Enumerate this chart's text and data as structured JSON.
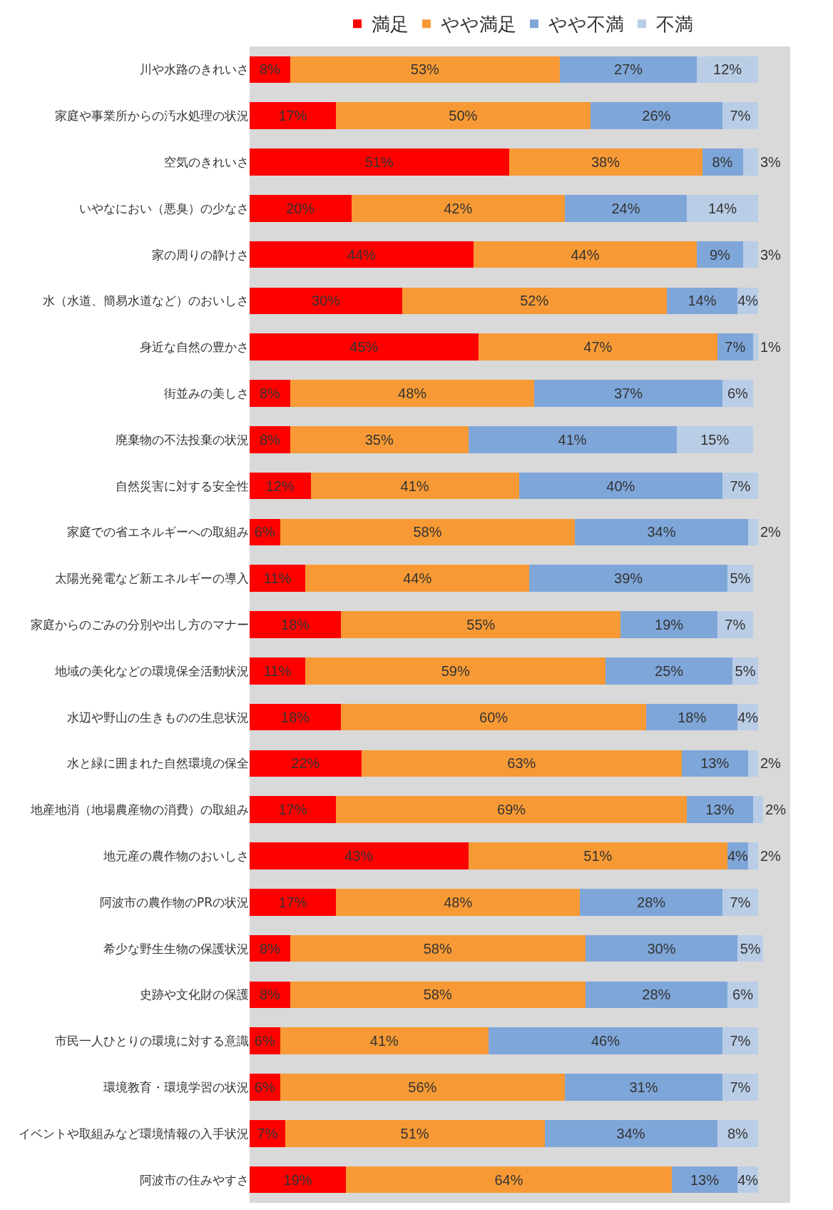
{
  "chart_data": {
    "type": "bar",
    "orientation": "horizontal",
    "stacked": true,
    "legend": "top",
    "tick_labels": "y",
    "grid": false,
    "categories": [
      "川や水路のきれいさ",
      "家庭や事業所からの汚水処理の状況",
      "空気のきれいさ",
      "いやなにおい（悪臭）の少なさ",
      "家の周りの静けさ",
      "水（水道、簡易水道など）のおいしさ",
      "身近な自然の豊かさ",
      "街並みの美しさ",
      "廃棄物の不法投棄の状況",
      "自然災害に対する安全性",
      "家庭での省エネルギーへの取組み",
      "太陽光発電など新エネルギーの導入",
      "家庭からのごみの分別や出し方のマナー",
      "地域の美化などの環境保全活動状況",
      "水辺や野山の生きものの生息状況",
      "水と緑に囲まれた自然環境の保全",
      "地産地消（地場農産物の消費）の取組み",
      "地元産の農作物のおいしさ",
      "阿波市の農作物のPRの状況",
      "希少な野生生物の保護状況",
      "史跡や文化財の保護",
      "市民一人ひとりの環境に対する意識",
      "環境教育・環境学習の状況",
      "イベントや取組みなど環境情報の入手状況",
      "阿波市の住みやすさ"
    ],
    "series": [
      {
        "name": "満足",
        "color": "#ff0000",
        "values": [
          8,
          17,
          51,
          20,
          44,
          30,
          45,
          8,
          8,
          12,
          6,
          11,
          18,
          11,
          18,
          22,
          17,
          43,
          17,
          8,
          8,
          6,
          6,
          7,
          19
        ],
        "value_labels": [
          "8%",
          "17%",
          "51%",
          "20%",
          "44%",
          "30%",
          "45%",
          "8%",
          "8%",
          "12%",
          "6%",
          "11%",
          "18%",
          "11%",
          "18%",
          "22%",
          "17%",
          "43%",
          "17%",
          "8%",
          "8%",
          "6%",
          "6%",
          "7%",
          "19%"
        ]
      },
      {
        "name": "やや満足",
        "color": "#f79a35",
        "values": [
          53,
          50,
          38,
          42,
          44,
          52,
          47,
          48,
          35,
          41,
          58,
          44,
          55,
          59,
          60,
          63,
          69,
          51,
          48,
          58,
          58,
          41,
          56,
          51,
          64
        ],
        "value_labels": [
          "53%",
          "50%",
          "38%",
          "42%",
          "44%",
          "52%",
          "47%",
          "48%",
          "35%",
          "41%",
          "58%",
          "44%",
          "55%",
          "59%",
          "60%",
          "63%",
          "69%",
          "51%",
          "48%",
          "58%",
          "58%",
          "41%",
          "56%",
          "51%",
          "64%"
        ]
      },
      {
        "name": "やや不満",
        "color": "#7fa6d9",
        "values": [
          27,
          26,
          8,
          24,
          9,
          14,
          7,
          37,
          41,
          40,
          34,
          39,
          19,
          25,
          18,
          13,
          13,
          4,
          28,
          30,
          28,
          46,
          31,
          34,
          13
        ],
        "value_labels": [
          "27%",
          "26%",
          "8%",
          "24%",
          "9%",
          "14%",
          "7%",
          "37%",
          "41%",
          "40%",
          "34%",
          "39%",
          "19%",
          "25%",
          "18%",
          "13%",
          "13%",
          "4%",
          "28%",
          "30%",
          "28%",
          "46%",
          "31%",
          "34%",
          "13%"
        ]
      },
      {
        "name": "不満",
        "color": "#bacde6",
        "values": [
          12,
          7,
          3,
          14,
          3,
          4,
          1,
          6,
          15,
          7,
          2,
          5,
          7,
          5,
          4,
          2,
          2,
          2,
          7,
          5,
          6,
          7,
          7,
          8,
          4
        ],
        "value_labels": [
          "12%",
          "7%",
          "3%",
          "14%",
          "3%",
          "4%",
          "1%",
          "6%",
          "15%",
          "7%",
          "2%",
          "5%",
          "7%",
          "5%",
          "4%",
          "2%",
          "2%",
          "2%",
          "7%",
          "5%",
          "6%",
          "7%",
          "7%",
          "8%",
          "4%"
        ]
      }
    ]
  }
}
